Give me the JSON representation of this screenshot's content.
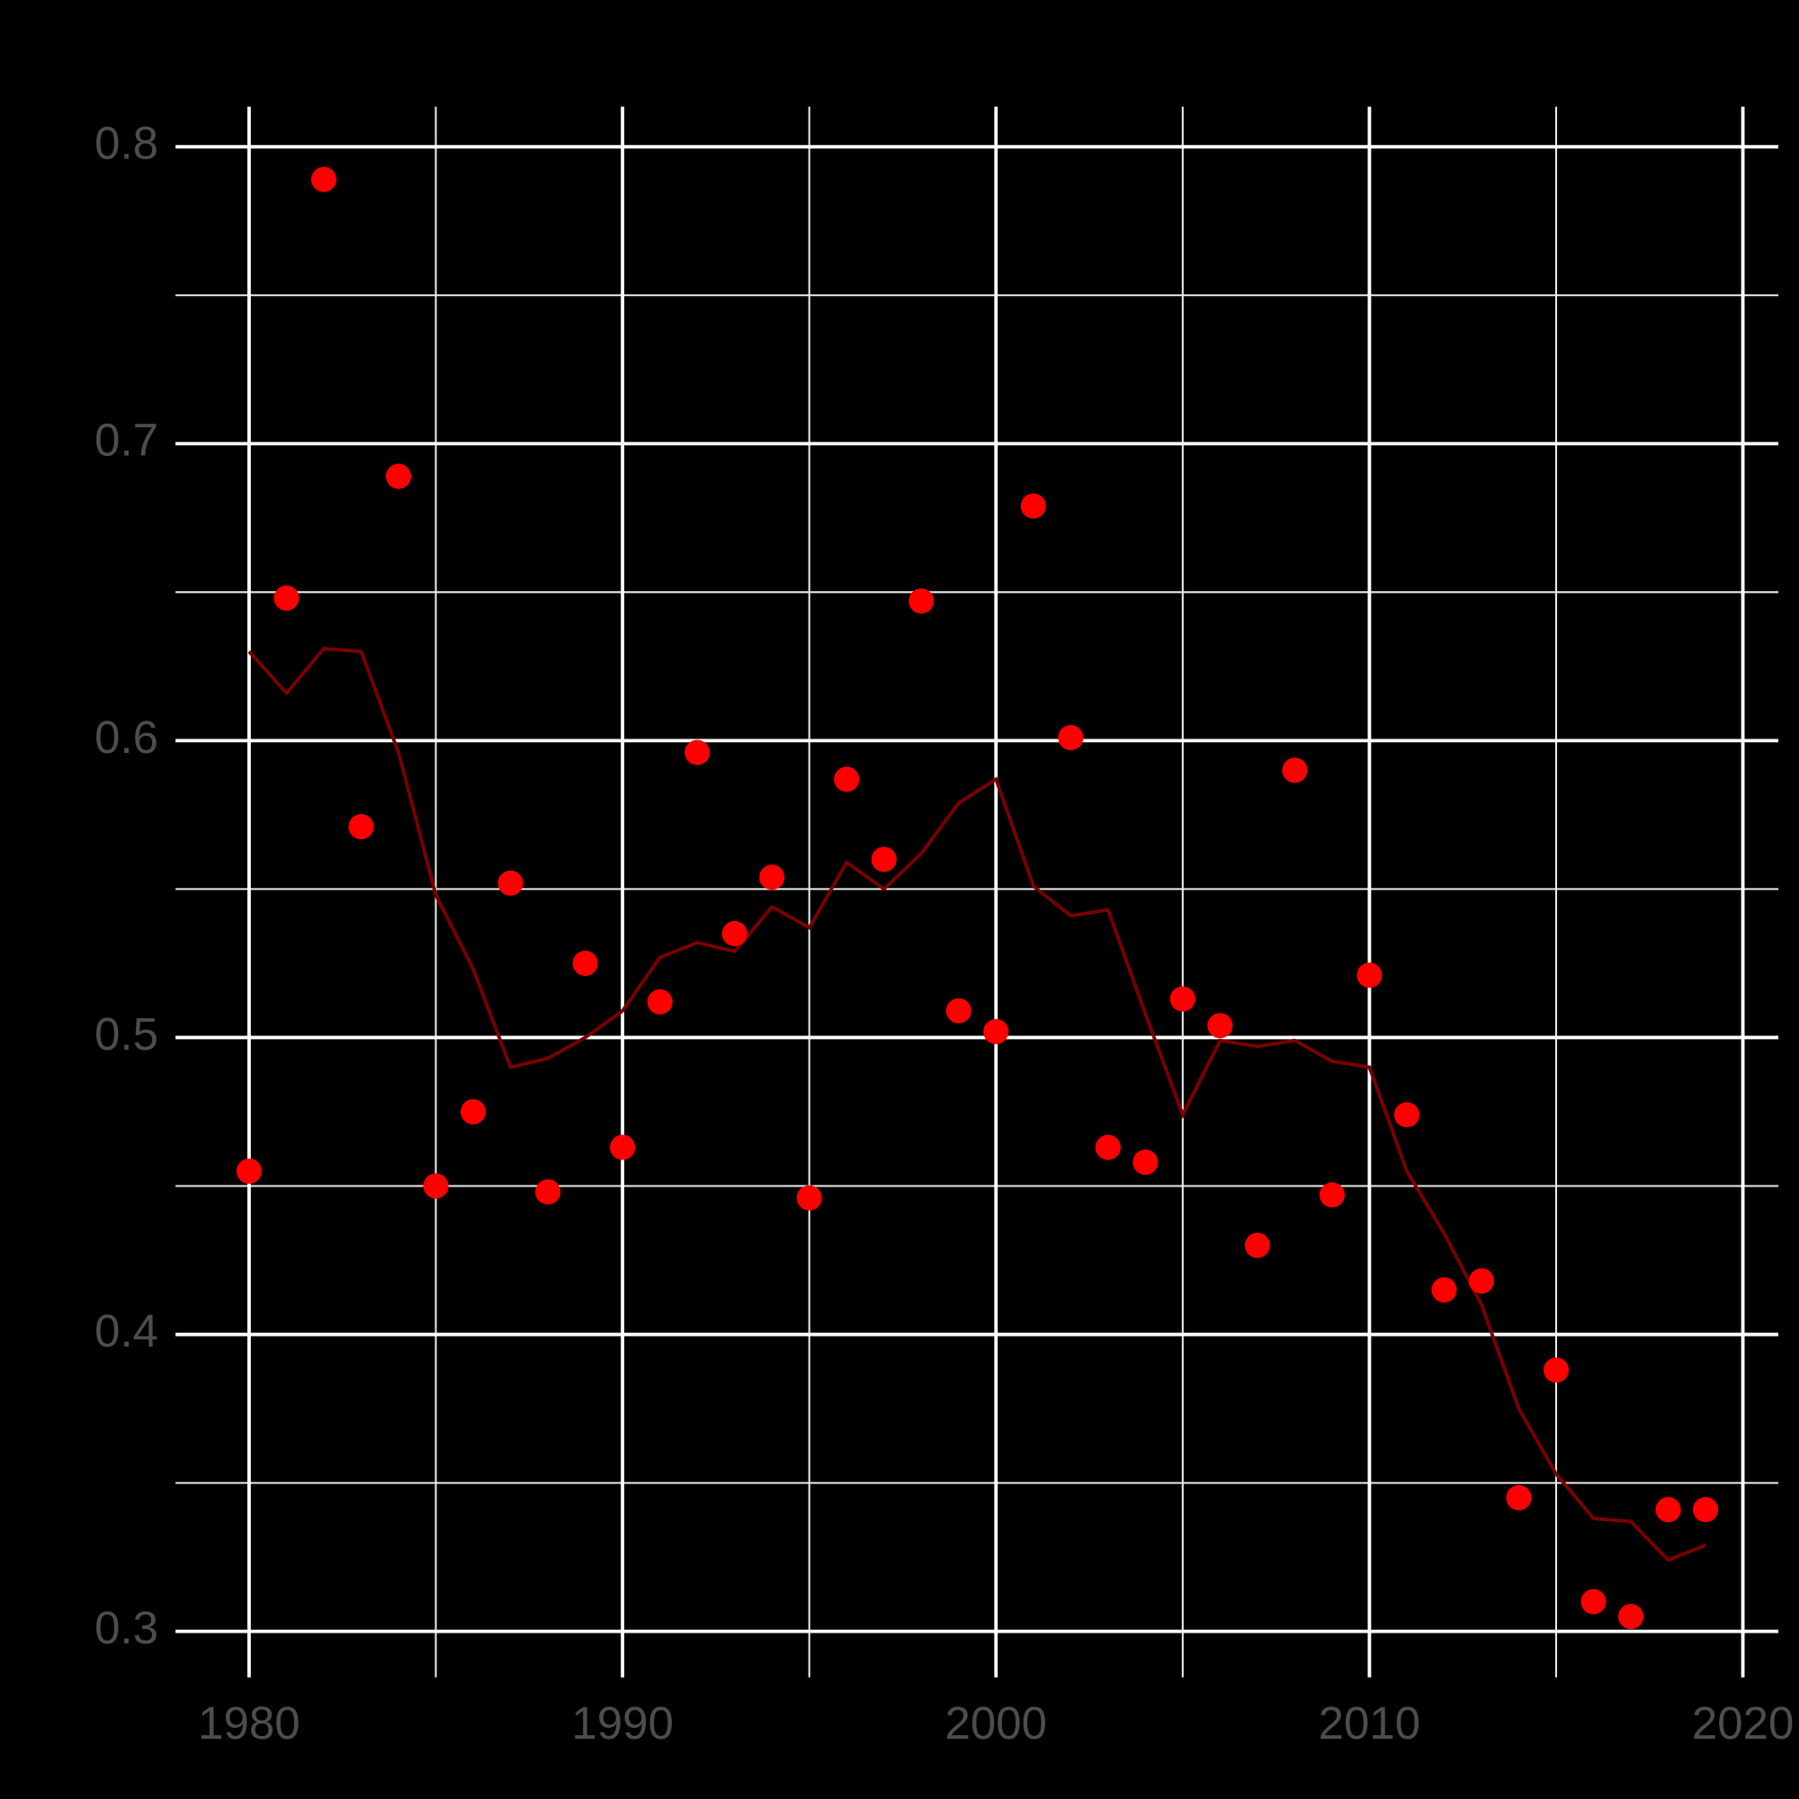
{
  "chart_data": {
    "type": "scatter",
    "x": [
      1980,
      1981,
      1982,
      1983,
      1984,
      1985,
      1986,
      1987,
      1988,
      1989,
      1990,
      1991,
      1992,
      1993,
      1994,
      1995,
      1996,
      1997,
      1998,
      1999,
      2000,
      2001,
      2002,
      2003,
      2004,
      2005,
      2006,
      2007,
      2008,
      2009,
      2010,
      2011,
      2012,
      2013,
      2014,
      2015,
      2016,
      2017,
      2018,
      2019
    ],
    "series": [
      {
        "style": "line",
        "color": "#7a0000",
        "values": [
          0.63,
          0.616,
          0.631,
          0.63,
          0.596,
          0.548,
          0.523,
          0.49,
          0.493,
          0.5,
          0.509,
          0.527,
          0.532,
          0.529,
          0.544,
          0.537,
          0.559,
          0.55,
          0.562,
          0.579,
          0.587,
          0.551,
          0.541,
          0.543,
          0.508,
          0.474,
          0.499,
          0.497,
          0.499,
          0.492,
          0.49,
          0.455,
          0.434,
          0.41,
          0.375,
          0.353,
          0.338,
          0.337,
          0.324,
          0.329
        ]
      },
      {
        "style": "points",
        "color": "#ff0000",
        "values": [
          0.455,
          0.648,
          0.789,
          0.571,
          0.689,
          0.45,
          0.475,
          0.552,
          0.448,
          0.525,
          0.463,
          0.512,
          0.596,
          0.535,
          0.554,
          0.446,
          0.587,
          0.56,
          0.647,
          0.509,
          0.502,
          0.679,
          0.601,
          0.463,
          0.458,
          0.513,
          0.504,
          0.43,
          0.59,
          0.447,
          0.521,
          0.474,
          0.415,
          0.418,
          0.345,
          0.388,
          0.31,
          0.305,
          0.341,
          0.341
        ]
      }
    ],
    "xlim": [
      1978.03,
      2020.95
    ],
    "xticks": [
      1980,
      1990,
      2000,
      2010,
      2020
    ],
    "x_minor_ticks": [
      1985,
      1995,
      2005,
      2015
    ],
    "ylim": [
      0.2845,
      0.8135
    ],
    "yticks": [
      0.3,
      0.4,
      0.5,
      0.6,
      0.7,
      0.8
    ],
    "y_minor_ticks": [
      0.35,
      0.45,
      0.55,
      0.65,
      0.75
    ],
    "grid": true
  }
}
